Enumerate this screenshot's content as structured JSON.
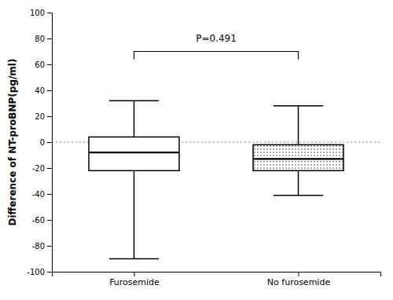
{
  "chart_data": {
    "type": "box",
    "categories": [
      "Furosemide",
      "No furosemide"
    ],
    "boxes": [
      {
        "whisker_low": -90,
        "q1": -22,
        "median": -8,
        "q3": 4,
        "whisker_high": 32
      },
      {
        "whisker_low": -41,
        "q1": -22,
        "median": -13,
        "q3": -2,
        "whisker_high": 28
      }
    ],
    "ylabel": "Difference of NT-proBNP(pg/ml)",
    "ylim": [
      -100,
      100
    ],
    "yticks": [
      -100,
      -80,
      -60,
      -40,
      -20,
      0,
      20,
      40,
      60,
      80,
      100
    ],
    "reference_y": 0,
    "annotation": {
      "text": "P=0.491",
      "y": 76,
      "bracket_y": 70
    },
    "grid": false
  }
}
